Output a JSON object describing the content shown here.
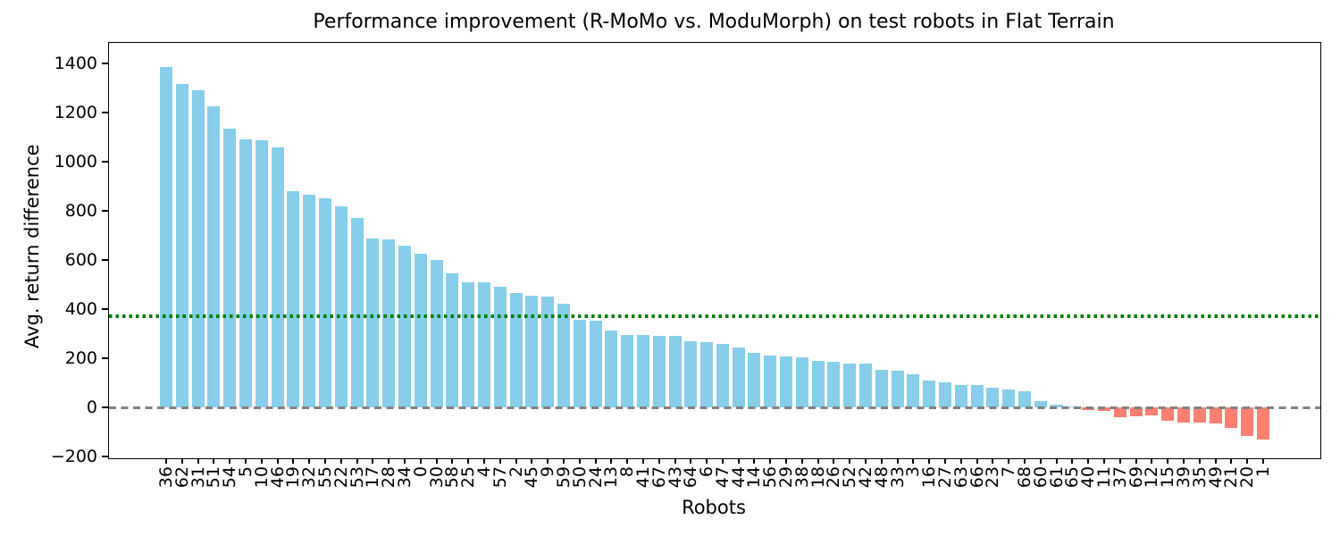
{
  "title": "Performance improvement (R-MoMo vs. ModuMorph) on test robots in Flat Terrain",
  "chart_data": {
    "type": "bar",
    "title": "Performance improvement (R-MoMo vs. ModuMorph) on test robots in Flat Terrain",
    "xlabel": "Robots",
    "ylabel": "Avg. return difference",
    "categories": [
      "36",
      "62",
      "31",
      "51",
      "54",
      "5",
      "10",
      "46",
      "19",
      "32",
      "55",
      "22",
      "53",
      "17",
      "28",
      "34",
      "0",
      "30",
      "58",
      "25",
      "4",
      "57",
      "2",
      "45",
      "9",
      "59",
      "50",
      "24",
      "13",
      "8",
      "41",
      "67",
      "43",
      "64",
      "6",
      "47",
      "44",
      "14",
      "56",
      "29",
      "38",
      "18",
      "26",
      "52",
      "42",
      "48",
      "33",
      "3",
      "16",
      "27",
      "63",
      "66",
      "23",
      "7",
      "68",
      "60",
      "61",
      "65",
      "40",
      "11",
      "37",
      "69",
      "12",
      "15",
      "39",
      "35",
      "49",
      "21",
      "20",
      "1"
    ],
    "values": [
      1385,
      1318,
      1290,
      1224,
      1135,
      1090,
      1086,
      1060,
      880,
      864,
      851,
      820,
      772,
      686,
      684,
      660,
      624,
      600,
      545,
      510,
      508,
      491,
      464,
      453,
      451,
      421,
      357,
      351,
      311,
      295,
      293,
      292,
      290,
      268,
      266,
      258,
      242,
      221,
      212,
      206,
      204,
      190,
      185,
      180,
      178,
      152,
      149,
      133,
      110,
      101,
      92,
      91,
      79,
      74,
      64,
      25,
      12,
      4,
      -11,
      -13,
      -39,
      -36,
      -33,
      -56,
      -62,
      -62,
      -65,
      -85,
      -117,
      -130
    ],
    "yticks": [
      1400,
      1200,
      1000,
      800,
      600,
      400,
      200,
      0,
      -200
    ],
    "ylim": [
      -207,
      1484
    ],
    "grid": false,
    "legend": null,
    "bar_width_ratio": 0.8,
    "positive_color": "#87CEEB",
    "negative_color": "#FA8072",
    "reference_lines": [
      {
        "name": "threshold-line",
        "value": 370,
        "style": "dotted",
        "color": "#007F00"
      },
      {
        "name": "zero-line",
        "value": 0,
        "style": "dashed",
        "color": "#808080"
      }
    ]
  }
}
